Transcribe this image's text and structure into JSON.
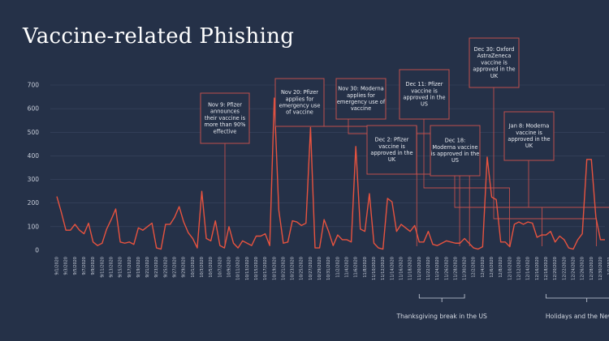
{
  "title": "Vaccine-related Phishing",
  "colors": {
    "background": "#253148",
    "line": "#e8533f",
    "annotation_border": "#c0504d",
    "text": "#c9cfdb"
  },
  "chart_data": {
    "type": "line",
    "title": "Vaccine-related Phishing",
    "xlabel": "",
    "ylabel": "",
    "ylim": [
      0,
      700
    ],
    "y_ticks": [
      0,
      100,
      200,
      300,
      400,
      500,
      600,
      700
    ],
    "grid": true,
    "x_start": "2020-09-01",
    "tick_labels": [
      "9/1/2020",
      "9/3/2020",
      "9/5/2020",
      "9/7/2020",
      "9/9/2020",
      "9/11/2020",
      "9/13/2020",
      "9/15/2020",
      "9/17/2020",
      "9/19/2020",
      "9/21/2020",
      "9/23/2020",
      "9/25/2020",
      "9/27/2020",
      "9/29/2020",
      "10/1/2020",
      "10/3/2020",
      "10/5/2020",
      "10/7/2020",
      "10/9/2020",
      "10/11/2020",
      "10/13/2020",
      "10/15/2020",
      "10/17/2020",
      "10/19/2020",
      "10/21/2020",
      "10/23/2020",
      "10/25/2020",
      "10/27/2020",
      "10/29/2020",
      "10/31/2020",
      "11/2/2020",
      "11/4/2020",
      "11/6/2020",
      "11/8/2020",
      "11/10/2020",
      "11/12/2020",
      "11/14/2020",
      "11/16/2020",
      "11/18/2020",
      "11/20/2020",
      "11/22/2020",
      "11/24/2020",
      "11/26/2020",
      "11/28/2020",
      "11/30/2020",
      "12/2/2020",
      "12/4/2020",
      "12/6/2020",
      "12/8/2020",
      "12/10/2020",
      "12/12/2020",
      "12/14/2020",
      "12/16/2020",
      "12/18/2020",
      "12/20/2020",
      "12/22/2020",
      "12/24/2020",
      "12/26/2020",
      "12/28/2020",
      "12/30/2020",
      "1/1/2021",
      "1/3/2021",
      "1/5/2021",
      "1/7/2021",
      "1/9/2021",
      "1/11/2021",
      "1/13/2021",
      "1/15/2021",
      "1/17/2021",
      "1/19/2021",
      "1/21/2021",
      "1/23/2021",
      "1/25/2021",
      "1/27/2021",
      "1/29/2021",
      "1/31/2021"
    ],
    "series": [
      {
        "name": "",
        "values": [
          228,
          160,
          85,
          85,
          110,
          85,
          70,
          115,
          35,
          20,
          30,
          90,
          130,
          175,
          35,
          30,
          35,
          25,
          95,
          85,
          100,
          115,
          10,
          5,
          110,
          110,
          140,
          185,
          120,
          75,
          50,
          10,
          250,
          50,
          40,
          125,
          20,
          10,
          100,
          30,
          10,
          40,
          30,
          20,
          60,
          60,
          70,
          20,
          645,
          170,
          30,
          35,
          125,
          120,
          105,
          115,
          520,
          10,
          10,
          130,
          80,
          20,
          65,
          45,
          45,
          35,
          440,
          90,
          80,
          240,
          30,
          10,
          5,
          220,
          205,
          80,
          110,
          95,
          80,
          105,
          35,
          35,
          80,
          25,
          20,
          30,
          40,
          35,
          30,
          30,
          50,
          30,
          10,
          5,
          15,
          395,
          225,
          215,
          35,
          35,
          15,
          110,
          120,
          110,
          120,
          115,
          55,
          65,
          65,
          80,
          35,
          60,
          45,
          10,
          5,
          45,
          70,
          385,
          385,
          140,
          45,
          45
        ],
        "color": "#e8533f"
      }
    ],
    "annotations": [
      {
        "text": [
          "Nov 9: Pfizer",
          "announces",
          "their vaccine is",
          "more than 90%",
          "effective"
        ],
        "date": "2020-11-09"
      },
      {
        "text": [
          "Nov 20: Pfizer",
          "applies for",
          "emergency use",
          "of vaccine"
        ],
        "date": "2020-11-20"
      },
      {
        "text": [
          "Nov 30: Moderna",
          "applies for",
          "emergency use of",
          "vaccine"
        ],
        "date": "2020-11-30"
      },
      {
        "text": [
          "Dec 2: Pfizer",
          "vaccine is",
          "approved in the",
          "UK"
        ],
        "date": "2020-12-02"
      },
      {
        "text": [
          "Dec 11: Pfizer",
          "vaccine is",
          "approved in the",
          "US"
        ],
        "date": "2020-12-11"
      },
      {
        "text": [
          "Dec 18:",
          "Moderna vaccine",
          "is approved in the",
          "US"
        ],
        "date": "2020-12-18"
      },
      {
        "text": [
          "Dec 30: Oxford",
          "AstraZeneca",
          "vaccine is",
          "approved in the",
          "UK"
        ],
        "date": "2020-12-30"
      },
      {
        "text": [
          "Jan 8: Moderna",
          "vaccine is",
          "approved in the",
          "UK"
        ],
        "date": "2021-01-08"
      }
    ],
    "periods": [
      {
        "label": "Thanksgiving break in the US",
        "start": "2020-11-20",
        "end": "2020-11-30"
      },
      {
        "label": "Holidays and the New Year",
        "start": "2020-12-18",
        "end": "2021-01-05"
      }
    ]
  }
}
